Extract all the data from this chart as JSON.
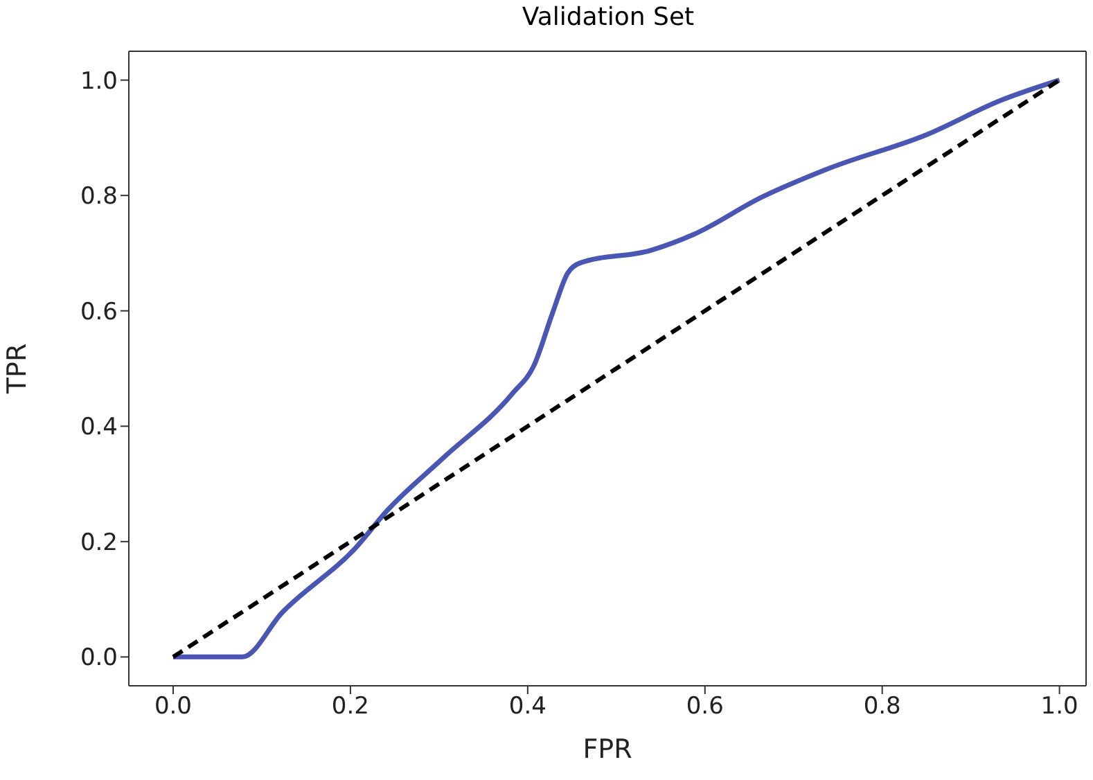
{
  "chart_data": {
    "type": "line",
    "title": "Validation Set",
    "xlabel": "FPR",
    "ylabel": "TPR",
    "xlim": [
      -0.05,
      1.03
    ],
    "ylim": [
      -0.05,
      1.05
    ],
    "xticks": [
      {
        "value": 0,
        "label": "0.0"
      },
      {
        "value": 0.2,
        "label": "0.2"
      },
      {
        "value": 0.4,
        "label": "0.4"
      },
      {
        "value": 0.6,
        "label": "0.6"
      },
      {
        "value": 0.8,
        "label": "0.8"
      },
      {
        "value": 1,
        "label": "1.0"
      }
    ],
    "yticks": [
      {
        "value": 0,
        "label": "0.0"
      },
      {
        "value": 0.2,
        "label": "0.2"
      },
      {
        "value": 0.4,
        "label": "0.4"
      },
      {
        "value": 0.6,
        "label": "0.6"
      },
      {
        "value": 0.8,
        "label": "0.8"
      },
      {
        "value": 1,
        "label": "1.0"
      }
    ],
    "grid": false,
    "series": [
      {
        "color": "#4a56b4",
        "line_style": "solid",
        "x": [
          0,
          0.078,
          0.123,
          0.207,
          0.241,
          0.304,
          0.383,
          0.407,
          0.428,
          0.445,
          0.459,
          0.539,
          0.588,
          0.664,
          0.74,
          0.851,
          0.934,
          1
        ],
        "values": [
          0,
          0,
          0.077,
          0.191,
          0.253,
          0.344,
          0.457,
          0.505,
          0.596,
          0.665,
          0.683,
          0.705,
          0.733,
          0.797,
          0.847,
          0.906,
          0.965,
          1
        ]
      },
      {
        "color": "#000000",
        "line_style": "dashed",
        "x": [
          0,
          1
        ],
        "values": [
          0,
          1
        ]
      }
    ]
  }
}
